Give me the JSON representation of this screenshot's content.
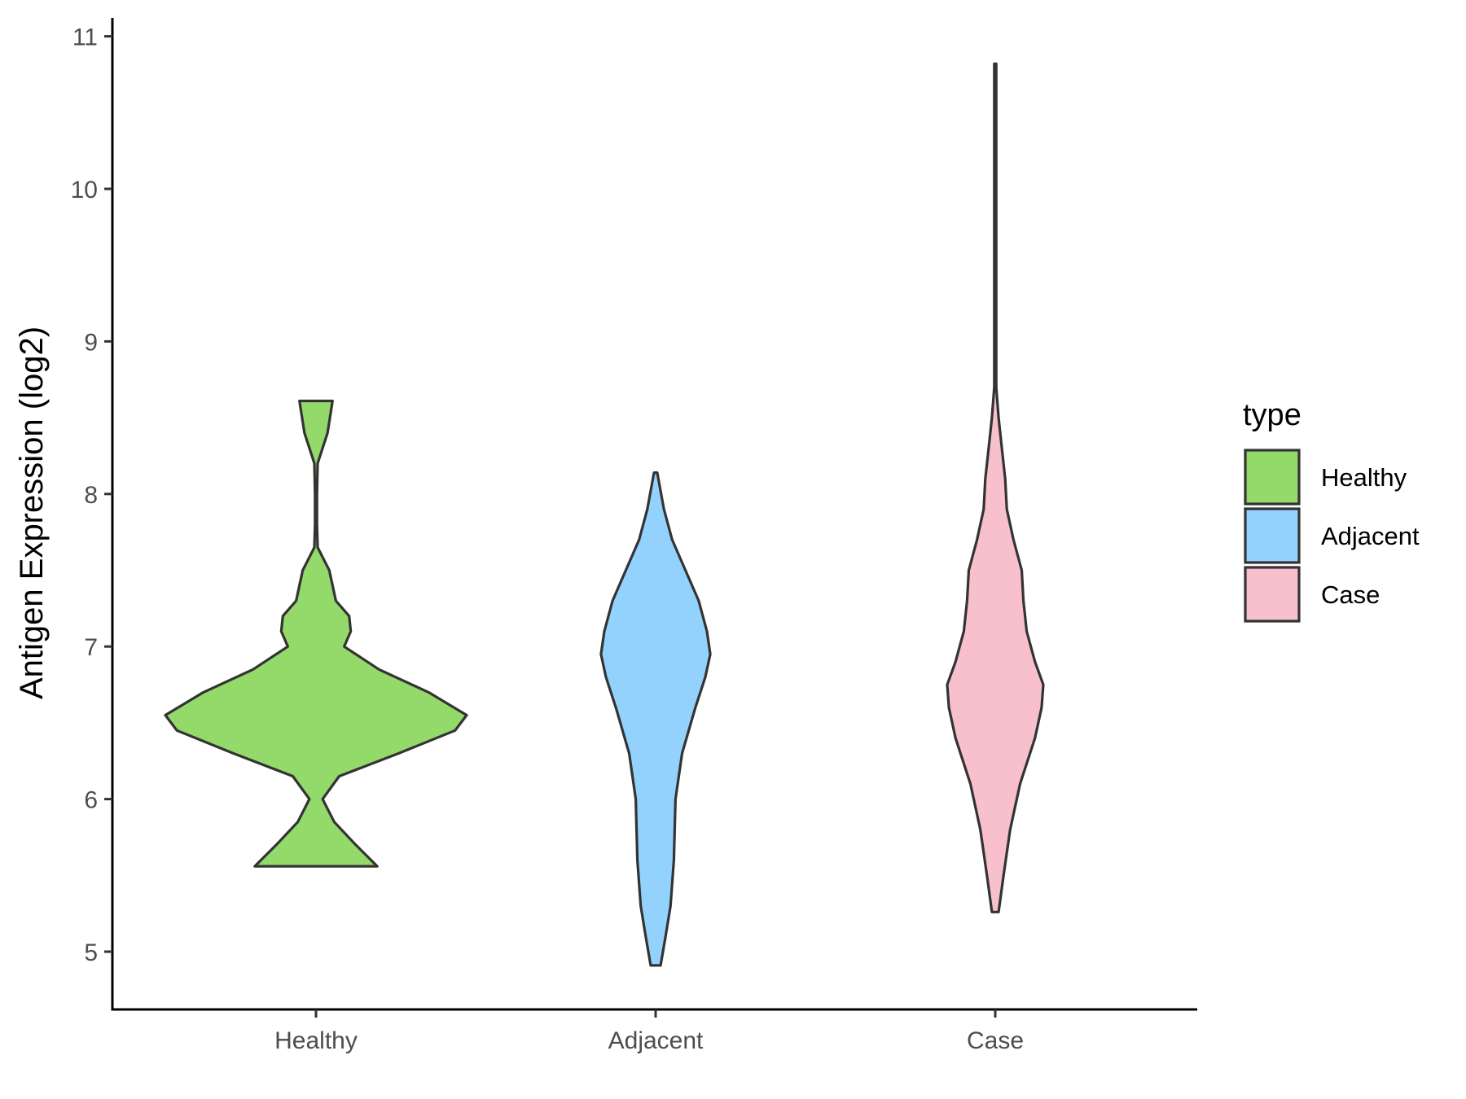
{
  "chart_data": {
    "type": "violin",
    "title": "",
    "xlabel": "",
    "ylabel": "Antigen Expression (log2)",
    "ylim": [
      4.6,
      11.1
    ],
    "yticks": [
      5,
      6,
      7,
      8,
      9,
      10,
      11
    ],
    "categories": [
      "Healthy",
      "Adjacent",
      "Case"
    ],
    "grid": false,
    "legend": {
      "title": "type",
      "position": "right",
      "entries": [
        "Healthy",
        "Adjacent",
        "Case"
      ]
    },
    "series": [
      {
        "name": "Healthy",
        "color": "#93DA6A",
        "min": 5.56,
        "max": 8.61,
        "density": [
          [
            5.56,
            0.37
          ],
          [
            5.7,
            0.24
          ],
          [
            5.85,
            0.11
          ],
          [
            6.0,
            0.04
          ],
          [
            6.15,
            0.14
          ],
          [
            6.3,
            0.5
          ],
          [
            6.45,
            0.84
          ],
          [
            6.55,
            0.91
          ],
          [
            6.7,
            0.68
          ],
          [
            6.85,
            0.38
          ],
          [
            7.0,
            0.17
          ],
          [
            7.1,
            0.21
          ],
          [
            7.2,
            0.2
          ],
          [
            7.3,
            0.12
          ],
          [
            7.5,
            0.08
          ],
          [
            7.65,
            0.01
          ],
          [
            7.8,
            0.0
          ],
          [
            8.0,
            0.0
          ],
          [
            8.2,
            0.01
          ],
          [
            8.4,
            0.07
          ],
          [
            8.61,
            0.1
          ]
        ]
      },
      {
        "name": "Adjacent",
        "color": "#94D2FE",
        "min": 4.91,
        "max": 8.14,
        "density": [
          [
            4.91,
            0.03
          ],
          [
            5.1,
            0.06
          ],
          [
            5.3,
            0.09
          ],
          [
            5.6,
            0.11
          ],
          [
            6.0,
            0.12
          ],
          [
            6.3,
            0.16
          ],
          [
            6.6,
            0.24
          ],
          [
            6.8,
            0.3
          ],
          [
            6.95,
            0.33
          ],
          [
            7.1,
            0.31
          ],
          [
            7.3,
            0.26
          ],
          [
            7.5,
            0.18
          ],
          [
            7.7,
            0.1
          ],
          [
            7.9,
            0.05
          ],
          [
            8.14,
            0.01
          ]
        ]
      },
      {
        "name": "Case",
        "color": "#F7C0CC",
        "min": 5.26,
        "max": 10.82,
        "density": [
          [
            5.26,
            0.02
          ],
          [
            5.5,
            0.05
          ],
          [
            5.8,
            0.09
          ],
          [
            6.1,
            0.15
          ],
          [
            6.4,
            0.24
          ],
          [
            6.6,
            0.28
          ],
          [
            6.75,
            0.29
          ],
          [
            6.9,
            0.24
          ],
          [
            7.1,
            0.19
          ],
          [
            7.3,
            0.17
          ],
          [
            7.5,
            0.16
          ],
          [
            7.7,
            0.11
          ],
          [
            7.9,
            0.07
          ],
          [
            8.1,
            0.06
          ],
          [
            8.3,
            0.04
          ],
          [
            8.5,
            0.02
          ],
          [
            8.7,
            0.005
          ],
          [
            9.0,
            0.002
          ],
          [
            9.5,
            0.001
          ],
          [
            10.0,
            0.001
          ],
          [
            10.5,
            0.002
          ],
          [
            10.82,
            0.002
          ]
        ]
      }
    ]
  }
}
